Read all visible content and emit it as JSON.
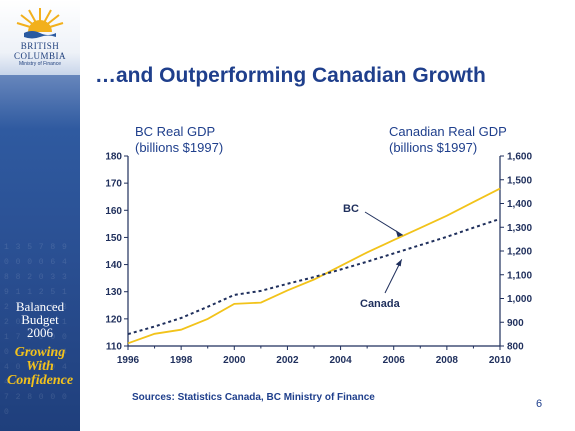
{
  "slide": {
    "title": "…and Outperforming Canadian Growth",
    "sources": "Sources:  Statistics Canada, BC Ministry of Finance",
    "page_number": "6"
  },
  "sidebar": {
    "logo_line1": "BRITISH",
    "logo_line2": "COLUMBIA",
    "logo_sub": "Ministry of Finance",
    "budget_line1": "Balanced",
    "budget_line2": "Budget",
    "budget_line3": "2006",
    "slogan_line1": "Growing",
    "slogan_line2": "With",
    "slogan_line3": "Confidence",
    "background_digits": "1 3 5 7 8 9 0 0 0 0 6 4 8 8 2 0 3 3 9 1 1 2 5 1 2 7 0 0 0 3 2 0 8 6 4 1 1 7 0 0 0 0 0 0 0 4 4 4 4 0 0 3 0 4 4 2 0 0 6 0 7 2 8 0 0 0 0"
  },
  "chart_data": {
    "type": "line",
    "left_axis_title_line1": "BC Real GDP",
    "left_axis_title_line2": "(billions $1997)",
    "right_axis_title_line1": "Canadian Real GDP",
    "right_axis_title_line2": "(billions $1997)",
    "x_ticks": [
      "1996",
      "1998",
      "2000",
      "2002",
      "2004",
      "2006",
      "2008",
      "2010"
    ],
    "xlim": [
      1996,
      2010
    ],
    "y_left_ticks": [
      "110",
      "120",
      "130",
      "140",
      "150",
      "160",
      "170",
      "180"
    ],
    "y_left_lim": [
      110,
      180
    ],
    "y_right_ticks": [
      "800",
      "900",
      "1,000",
      "1,100",
      "1,200",
      "1,300",
      "1,400",
      "1,500",
      "1,600"
    ],
    "y_right_lim": [
      800,
      1600
    ],
    "series": [
      {
        "name": "BC",
        "axis": "left",
        "style": "solid",
        "color": "#f2c31a",
        "x": [
          1996,
          1997,
          1998,
          1999,
          2000,
          2001,
          2002,
          2003,
          2004,
          2005,
          2006,
          2007,
          2008,
          2009,
          2010
        ],
        "values": [
          111,
          114.5,
          116,
          120,
          125.5,
          126,
          130.5,
          134.5,
          139.5,
          144.5,
          149,
          153.5,
          158,
          163,
          168
        ]
      },
      {
        "name": "Canada",
        "axis": "right",
        "style": "dashed",
        "color": "#1f2f5c",
        "x": [
          1996,
          1997,
          1998,
          1999,
          2000,
          2001,
          2002,
          2003,
          2004,
          2005,
          2006,
          2007,
          2008,
          2009,
          2010
        ],
        "values": [
          850,
          882,
          918,
          965,
          1015,
          1032,
          1062,
          1090,
          1122,
          1155,
          1190,
          1225,
          1260,
          1298,
          1335
        ]
      }
    ],
    "annotations": [
      {
        "label": "BC",
        "series": "BC",
        "x": 2006
      },
      {
        "label": "Canada",
        "series": "Canada",
        "x": 2006
      }
    ],
    "grid": false,
    "legend": "none"
  }
}
